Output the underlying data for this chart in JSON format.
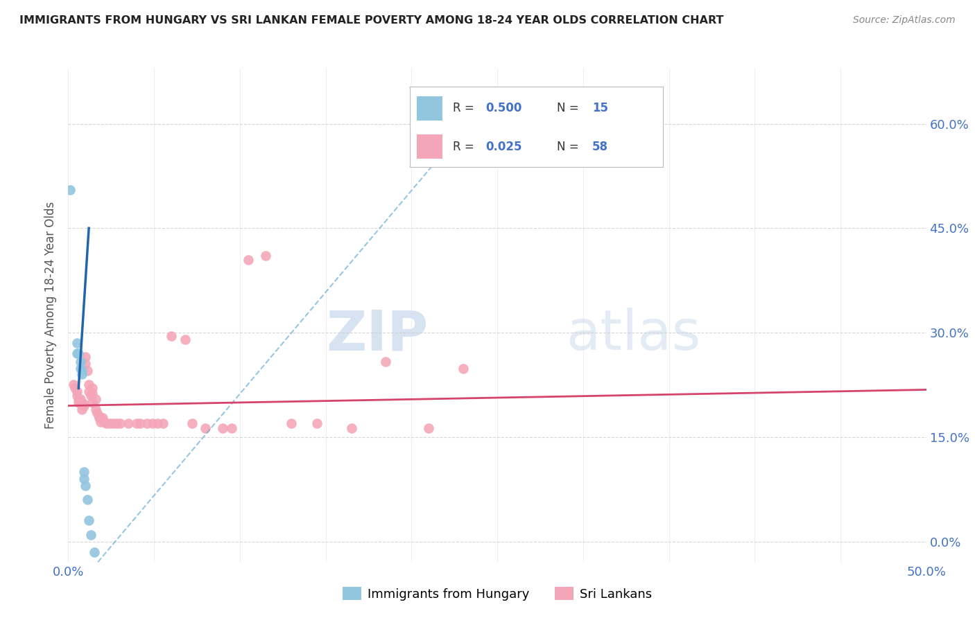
{
  "title": "IMMIGRANTS FROM HUNGARY VS SRI LANKAN FEMALE POVERTY AMONG 18-24 YEAR OLDS CORRELATION CHART",
  "source": "Source: ZipAtlas.com",
  "ylabel": "Female Poverty Among 18-24 Year Olds",
  "xlim": [
    0.0,
    0.5
  ],
  "ylim": [
    -0.03,
    0.68
  ],
  "yticks": [
    0.0,
    0.15,
    0.3,
    0.45,
    0.6
  ],
  "xticks": [
    0.0,
    0.05,
    0.1,
    0.15,
    0.2,
    0.25,
    0.3,
    0.35,
    0.4,
    0.45,
    0.5
  ],
  "legend1_label": "Immigrants from Hungary",
  "legend2_label": "Sri Lankans",
  "watermark_zip": "ZIP",
  "watermark_atlas": "atlas",
  "blue_color": "#92c5de",
  "pink_color": "#f4a6b8",
  "line_blue": "#2166ac",
  "line_blue_dash": "#6baed6",
  "line_pink": "#d6446b",
  "blue_scatter": [
    [
      0.001,
      0.505
    ],
    [
      0.005,
      0.285
    ],
    [
      0.005,
      0.27
    ],
    [
      0.006,
      0.27
    ],
    [
      0.007,
      0.258
    ],
    [
      0.007,
      0.248
    ],
    [
      0.008,
      0.245
    ],
    [
      0.008,
      0.24
    ],
    [
      0.009,
      0.1
    ],
    [
      0.009,
      0.09
    ],
    [
      0.01,
      0.08
    ],
    [
      0.011,
      0.06
    ],
    [
      0.012,
      0.03
    ],
    [
      0.013,
      0.01
    ],
    [
      0.015,
      -0.015
    ]
  ],
  "pink_scatter": [
    [
      0.003,
      0.225
    ],
    [
      0.004,
      0.22
    ],
    [
      0.005,
      0.215
    ],
    [
      0.005,
      0.21
    ],
    [
      0.006,
      0.205
    ],
    [
      0.006,
      0.2
    ],
    [
      0.007,
      0.2
    ],
    [
      0.007,
      0.205
    ],
    [
      0.008,
      0.2
    ],
    [
      0.008,
      0.198
    ],
    [
      0.008,
      0.19
    ],
    [
      0.009,
      0.198
    ],
    [
      0.009,
      0.195
    ],
    [
      0.01,
      0.265
    ],
    [
      0.01,
      0.255
    ],
    [
      0.011,
      0.245
    ],
    [
      0.012,
      0.225
    ],
    [
      0.012,
      0.215
    ],
    [
      0.013,
      0.21
    ],
    [
      0.014,
      0.22
    ],
    [
      0.014,
      0.212
    ],
    [
      0.014,
      0.2
    ],
    [
      0.016,
      0.205
    ],
    [
      0.016,
      0.19
    ],
    [
      0.017,
      0.185
    ],
    [
      0.018,
      0.18
    ],
    [
      0.018,
      0.178
    ],
    [
      0.019,
      0.172
    ],
    [
      0.019,
      0.178
    ],
    [
      0.02,
      0.178
    ],
    [
      0.021,
      0.172
    ],
    [
      0.022,
      0.17
    ],
    [
      0.024,
      0.17
    ],
    [
      0.026,
      0.17
    ],
    [
      0.028,
      0.17
    ],
    [
      0.03,
      0.17
    ],
    [
      0.035,
      0.17
    ],
    [
      0.04,
      0.17
    ],
    [
      0.042,
      0.17
    ],
    [
      0.046,
      0.17
    ],
    [
      0.049,
      0.17
    ],
    [
      0.052,
      0.17
    ],
    [
      0.055,
      0.17
    ],
    [
      0.06,
      0.295
    ],
    [
      0.068,
      0.29
    ],
    [
      0.072,
      0.17
    ],
    [
      0.08,
      0.163
    ],
    [
      0.09,
      0.163
    ],
    [
      0.095,
      0.163
    ],
    [
      0.105,
      0.405
    ],
    [
      0.115,
      0.41
    ],
    [
      0.13,
      0.17
    ],
    [
      0.145,
      0.17
    ],
    [
      0.165,
      0.163
    ],
    [
      0.185,
      0.258
    ],
    [
      0.21,
      0.163
    ],
    [
      0.23,
      0.248
    ]
  ],
  "blue_trendline_solid": [
    [
      0.006,
      0.22
    ],
    [
      0.012,
      0.45
    ]
  ],
  "blue_trendline_dashed": [
    [
      0.0,
      -0.08
    ],
    [
      0.25,
      0.65
    ]
  ],
  "pink_trendline": [
    [
      0.0,
      0.195
    ],
    [
      0.5,
      0.218
    ]
  ]
}
